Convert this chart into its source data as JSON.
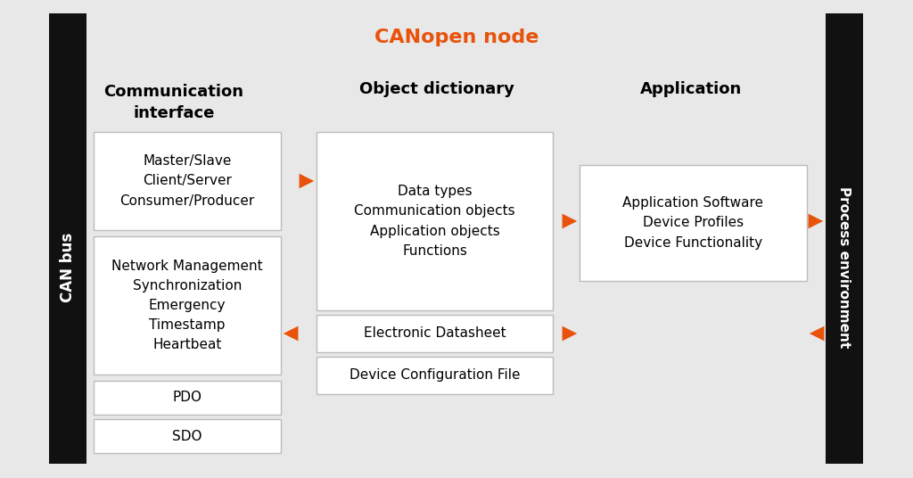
{
  "title": "CANopen node",
  "title_color": "#E8520A",
  "bg_color": "#E8E8E8",
  "box_fill": "#FFFFFF",
  "text_color": "#000000",
  "arrow_color": "#E8520A",
  "bar_color": "#111111",
  "left_label": "CAN bus",
  "right_label": "Process environment",
  "col1_header": "Communication\ninterface",
  "col2_header": "Object dictionary",
  "col3_header": "Application",
  "box1_text": "Master/Slave\nClient/Server\nConsumer/Producer",
  "box2_text": "Network Management\nSynchronization\nEmergency\nTimestamp\nHeartbeat",
  "box3_text": "PDO",
  "box4_text": "SDO",
  "box5_text": "Data types\nCommunication objects\nApplication objects\nFunctions",
  "box6_text": "Electronic Datasheet",
  "box7_text": "Device Configuration File",
  "box8_text": "Application Software\nDevice Profiles\nDevice Functionality"
}
